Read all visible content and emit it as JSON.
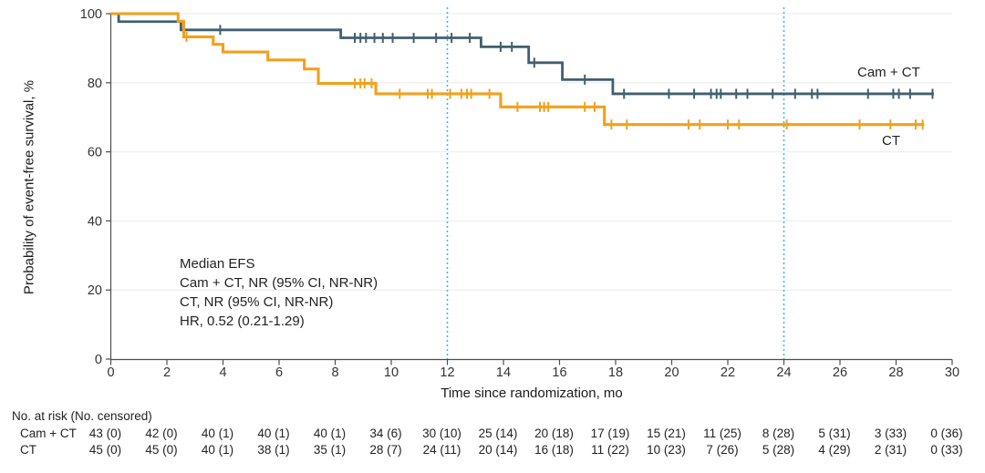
{
  "chart_data": {
    "type": "line",
    "subtype": "kaplan-meier-step-curves",
    "title": "",
    "xlabel": "Time since randomization, mo",
    "ylabel": "Probability of event-free survival, %",
    "xlim": [
      0,
      30
    ],
    "ylim": [
      0,
      100
    ],
    "xticks": [
      0,
      2,
      4,
      6,
      8,
      10,
      12,
      14,
      16,
      18,
      20,
      22,
      24,
      26,
      28,
      30
    ],
    "yticks": [
      0,
      20,
      40,
      60,
      80,
      100
    ],
    "grid": "horizontal-light",
    "legend_position": "right-of-curves",
    "reference_lines_x": [
      12,
      24
    ],
    "annotation": {
      "line1": "Median EFS",
      "line2": "Cam + CT, NR (95% CI, NR-NR)",
      "line3": "CT, NR (95% CI, NR-NR)",
      "line4": "HR, 0.52 (0.21-1.29)"
    },
    "series": [
      {
        "name": "Cam + CT",
        "color": "#415f6f",
        "line_width": 2.8,
        "steps": [
          [
            0,
            100
          ],
          [
            0.28,
            97.7
          ],
          [
            2.5,
            95.3
          ],
          [
            8.2,
            93.0
          ],
          [
            13.2,
            90.4
          ],
          [
            14.9,
            85.8
          ],
          [
            16.1,
            80.9
          ],
          [
            17.9,
            76.8
          ]
        ],
        "end_x": 29.35,
        "censors": [
          3.9,
          8.7,
          8.9,
          9.1,
          9.4,
          9.7,
          10.05,
          10.8,
          11.6,
          12.15,
          12.8,
          13.9,
          14.3,
          15.1,
          16.9,
          18.3,
          19.9,
          20.8,
          21.4,
          21.6,
          21.75,
          22.3,
          22.7,
          23.6,
          24.4,
          25.0,
          25.2,
          27.0,
          27.9,
          28.1,
          28.5,
          29.3
        ]
      },
      {
        "name": "CT",
        "color": "#f0a11d",
        "line_width": 3.1,
        "steps": [
          [
            0,
            100
          ],
          [
            2.4,
            97.8
          ],
          [
            2.6,
            93.3
          ],
          [
            3.65,
            91.1
          ],
          [
            4.0,
            88.9
          ],
          [
            5.6,
            86.6
          ],
          [
            6.9,
            84.0
          ],
          [
            7.4,
            79.8
          ],
          [
            9.45,
            76.8
          ],
          [
            13.9,
            73.0
          ],
          [
            17.6,
            67.9
          ]
        ],
        "end_x": 29.0,
        "censors": [
          2.7,
          8.7,
          8.9,
          9.05,
          9.3,
          10.3,
          11.3,
          11.45,
          12.1,
          12.5,
          12.7,
          12.85,
          13.5,
          14.5,
          15.3,
          15.45,
          15.6,
          16.9,
          17.25,
          17.85,
          18.4,
          20.6,
          21.0,
          22.0,
          22.4,
          24.1,
          26.7,
          27.8,
          28.7,
          28.95
        ]
      }
    ]
  },
  "risk_table": {
    "header": "No. at risk (No. censored)",
    "times": [
      0,
      2,
      4,
      6,
      8,
      10,
      12,
      14,
      16,
      18,
      20,
      22,
      24,
      26,
      28,
      30
    ],
    "rows": [
      {
        "label": "Cam + CT",
        "values": [
          "43 (0)",
          "42 (0)",
          "40 (1)",
          "40 (1)",
          "40 (1)",
          "34 (6)",
          "30 (10)",
          "25 (14)",
          "20 (18)",
          "17 (19)",
          "15 (21)",
          "11 (25)",
          "8 (28)",
          "5 (31)",
          "3 (33)",
          "0 (36)"
        ]
      },
      {
        "label": "CT",
        "values": [
          "45 (0)",
          "45 (0)",
          "40 (1)",
          "38 (1)",
          "35 (1)",
          "28 (7)",
          "24 (11)",
          "20 (14)",
          "16 (18)",
          "11 (22)",
          "10 (23)",
          "7 (26)",
          "5 (28)",
          "4 (29)",
          "2 (31)",
          "0 (33)"
        ]
      }
    ]
  },
  "colors": {
    "cam_ct_line": "#415f6f",
    "ct_line": "#f0a11d",
    "reference_line": "#41b6e6",
    "axis": "#4d4d4d",
    "gridline": "#ebebeb",
    "tick_text": "#333333"
  }
}
